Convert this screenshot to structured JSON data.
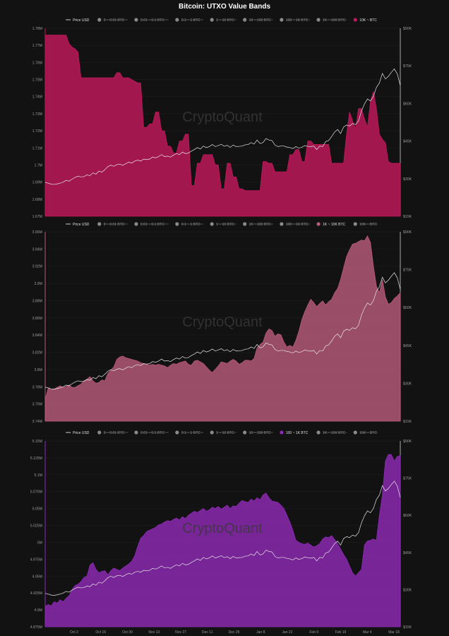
{
  "title": "Bitcoin: UTXO Value Bands",
  "watermark": "CryptoQuant",
  "colors": {
    "background": "#121212",
    "grid": "#1e1e1e",
    "price_line": "#e6e6e6",
    "band_10k": "#c2185b",
    "band_1k_10k": "#b85a7a",
    "band_100_1k": "#8e2ab5",
    "legend_inactive": "#8a8a8a",
    "axis_text": "#9a9a9a",
    "watermark": "#3a3a3a"
  },
  "chart_data": [
    {
      "type": "area",
      "title": "Bitcoin: UTXO Value Bands",
      "legend": [
        {
          "label": "Price USD",
          "active": true,
          "marker": "line"
        },
        {
          "label": "0 ~ 0.01 BTC",
          "active": false
        },
        {
          "label": "0.01 ~ 0.1 BTC",
          "active": false
        },
        {
          "label": "0.1 ~ 1 BTC",
          "active": false
        },
        {
          "label": "1 ~ 10 BTC",
          "active": false
        },
        {
          "label": "10 ~ 100 BTC",
          "active": false
        },
        {
          "label": "100 ~ 1K BTC",
          "active": false
        },
        {
          "label": "1K ~ 10K BTC",
          "active": false
        },
        {
          "label": "10K ~ BTC",
          "active": true
        }
      ],
      "legend_placement": "top",
      "yleft_ticks": [
        "1.67M",
        "1.68M",
        "1.69M",
        "1.7M",
        "1.71M",
        "1.72M",
        "1.73M",
        "1.74M",
        "1.75M",
        "1.76M",
        "1.77M",
        "1.78M"
      ],
      "yleft_range": [
        1670000,
        1780000
      ],
      "yright_ticks": [
        "$15K",
        "$30K",
        "$45K",
        "$60K",
        "$75K",
        "$90K"
      ],
      "yright_range": [
        15000,
        90000
      ],
      "series": [
        {
          "name": "10K ~ BTC",
          "color": "#c2185b",
          "values": [
            1776000,
            1776000,
            1776000,
            1776000,
            1776000,
            1776000,
            1776000,
            1776000,
            1771000,
            1769000,
            1768000,
            1766000,
            1751000,
            1751000,
            1751000,
            1751000,
            1751000,
            1751000,
            1751000,
            1751000,
            1751000,
            1751000,
            1751000,
            1751000,
            1754000,
            1754000,
            1751000,
            1751000,
            1751000,
            1750000,
            1749000,
            1748000,
            1748000,
            1722000,
            1722000,
            1724000,
            1724000,
            1731000,
            1731000,
            1720000,
            1720000,
            1711000,
            1711000,
            1707000,
            1707000,
            1714000,
            1714000,
            1718000,
            1718000,
            1688000,
            1688000,
            1701000,
            1701000,
            1706000,
            1706000,
            1706000,
            1706000,
            1700000,
            1700000,
            1686000,
            1686000,
            1701000,
            1701000,
            1693000,
            1693000,
            1686000,
            1686000,
            1685000,
            1685000,
            1685000,
            1685000,
            1685000,
            1685000,
            1702000,
            1702000,
            1701000,
            1701000,
            1696000,
            1696000,
            1696000,
            1696000,
            1696000,
            1706000,
            1706000,
            1709000,
            1709000,
            1702000,
            1702000,
            1714000,
            1714000,
            1712000,
            1712000,
            1712000,
            1712000,
            1712000,
            1712000,
            1701000,
            1701000,
            1701000,
            1701000,
            1701000,
            1718000,
            1731000,
            1726000,
            1721000,
            1733000,
            1733000,
            1727000,
            1722000,
            1737000,
            1743000,
            1733000,
            1718000,
            1715000,
            1713000,
            1702000,
            1701000,
            1701000,
            1701000,
            1701000
          ]
        },
        {
          "name": "Price USD",
          "color": "#e6e6e6",
          "axis": "right",
          "values": [
            28500,
            28200,
            27800,
            27700,
            27900,
            28200,
            28600,
            29300,
            29000,
            29800,
            30500,
            31000,
            30700,
            30800,
            31500,
            31200,
            32300,
            31800,
            33000,
            32600,
            33600,
            34800,
            35400,
            34900,
            35600,
            35800,
            35300,
            36000,
            36600,
            36200,
            37000,
            37400,
            37000,
            37800,
            37600,
            37800,
            38600,
            38300,
            38800,
            39600,
            38800,
            39000,
            38600,
            39400,
            40000,
            39600,
            40600,
            40000,
            40200,
            41000,
            41600,
            42400,
            41800,
            43000,
            42400,
            42800,
            43600,
            42800,
            43200,
            43700,
            42900,
            43300,
            42500,
            43400,
            42800,
            42900,
            43000,
            43500,
            43600,
            44400,
            43800,
            45400,
            44000,
            44400,
            46000,
            45400,
            45200,
            43400,
            42800,
            43000,
            43000,
            42600,
            42400,
            42000,
            42800,
            42200,
            42500,
            43200,
            42900,
            42700,
            43000,
            41600,
            43000,
            42800,
            44800,
            45200,
            46800,
            48600,
            49600,
            48000,
            50600,
            51400,
            51000,
            52000,
            51600,
            53000,
            57000,
            59800,
            61800,
            61000,
            62800,
            66400,
            68200,
            72000,
            69800,
            70800,
            72400,
            73800,
            71800,
            67200
          ]
        }
      ]
    },
    {
      "type": "area",
      "title": "",
      "legend": [
        {
          "label": "Price USD",
          "active": true,
          "marker": "line"
        },
        {
          "label": "0 ~ 0.01 BTC",
          "active": false
        },
        {
          "label": "0.01 ~ 0.1 BTC",
          "active": false
        },
        {
          "label": "0.1 ~ 1 BTC",
          "active": false
        },
        {
          "label": "1 ~ 10 BTC",
          "active": false
        },
        {
          "label": "10 ~ 100 BTC",
          "active": false
        },
        {
          "label": "100 ~ 1K BTC",
          "active": false
        },
        {
          "label": "1K ~ 10K BTC",
          "active": true
        },
        {
          "label": "10K ~ BTC",
          "active": false
        }
      ],
      "legend_placement": "top",
      "yleft_ticks": [
        "3.74M",
        "3.76M",
        "3.78M",
        "3.8M",
        "3.82M",
        "3.84M",
        "3.86M",
        "3.88M",
        "3.9M",
        "3.92M",
        "3.94M",
        "3.96M"
      ],
      "yleft_range": [
        3740000,
        3970000
      ],
      "yright_ticks": [
        "$15K",
        "$30K",
        "$45K",
        "$60K",
        "$75K",
        "$90K"
      ],
      "yright_range": [
        15000,
        90000
      ],
      "series": [
        {
          "name": "1K ~ 10K BTC",
          "color": "#b85a7a",
          "values": [
            3766000,
            3780000,
            3778000,
            3779000,
            3781000,
            3783000,
            3781000,
            3782000,
            3784000,
            3781000,
            3781000,
            3783000,
            3785000,
            3789000,
            3791000,
            3794000,
            3789000,
            3786000,
            3787000,
            3790000,
            3789000,
            3798000,
            3802000,
            3806000,
            3815000,
            3818000,
            3819000,
            3817000,
            3816000,
            3815000,
            3814000,
            3813000,
            3811000,
            3810000,
            3809000,
            3808000,
            3809000,
            3808000,
            3809000,
            3808000,
            3807000,
            3805000,
            3808000,
            3810000,
            3809000,
            3811000,
            3812000,
            3813000,
            3809000,
            3808000,
            3813000,
            3814000,
            3812000,
            3810000,
            3806000,
            3802000,
            3799000,
            3803000,
            3807000,
            3812000,
            3811000,
            3810000,
            3813000,
            3815000,
            3813000,
            3809000,
            3811000,
            3814000,
            3814000,
            3813000,
            3816000,
            3829000,
            3833000,
            3836000,
            3847000,
            3852000,
            3850000,
            3843000,
            3846000,
            3845000,
            3836000,
            3830000,
            3832000,
            3830000,
            3838000,
            3849000,
            3863000,
            3873000,
            3881000,
            3888000,
            3884000,
            3879000,
            3883000,
            3886000,
            3881000,
            3885000,
            3888000,
            3896000,
            3901000,
            3912000,
            3926000,
            3940000,
            3948000,
            3955000,
            3956000,
            3958000,
            3960000,
            3959000,
            3965000,
            3957000,
            3928000,
            3904000,
            3896000,
            3912000,
            3891000,
            3882000,
            3884000,
            3889000,
            3892000,
            3896000
          ]
        },
        {
          "name": "Price USD",
          "color": "#e6e6e6",
          "axis": "right",
          "values": [
            28500,
            28200,
            27800,
            27700,
            27900,
            28200,
            28600,
            29300,
            29000,
            29800,
            30500,
            31000,
            30700,
            30800,
            31500,
            31200,
            32300,
            31800,
            33000,
            32600,
            33600,
            34800,
            35400,
            34900,
            35600,
            35800,
            35300,
            36000,
            36600,
            36200,
            37000,
            37400,
            37000,
            37800,
            37600,
            37800,
            38600,
            38300,
            38800,
            39600,
            38800,
            39000,
            38600,
            39400,
            40000,
            39600,
            40600,
            40000,
            40200,
            41000,
            41600,
            42400,
            41800,
            43000,
            42400,
            42800,
            43600,
            42800,
            43200,
            43700,
            42900,
            43300,
            42500,
            43400,
            42800,
            42900,
            43000,
            43500,
            43600,
            44400,
            43800,
            45400,
            44000,
            44400,
            46000,
            45400,
            45200,
            43400,
            42800,
            43000,
            43000,
            42600,
            42400,
            42000,
            42800,
            42200,
            42500,
            43200,
            42900,
            42700,
            43000,
            41600,
            43000,
            42800,
            44800,
            45200,
            46800,
            48600,
            49600,
            48000,
            50600,
            51400,
            51000,
            52000,
            51600,
            53000,
            57000,
            59800,
            61800,
            61000,
            62800,
            66400,
            68200,
            72000,
            69800,
            70800,
            72400,
            73800,
            71800,
            67200
          ]
        }
      ]
    },
    {
      "type": "area",
      "title": "",
      "legend": [
        {
          "label": "Price USD",
          "active": true,
          "marker": "line"
        },
        {
          "label": "0 ~ 0.01 BTC",
          "active": false
        },
        {
          "label": "0.01 ~ 0.1 BTC",
          "active": false
        },
        {
          "label": "0.1 ~ 1 BTC",
          "active": false
        },
        {
          "label": "1 ~ 10 BTC",
          "active": false
        },
        {
          "label": "10 ~ 100 BTC",
          "active": false
        },
        {
          "label": "100 ~ 1K BTC",
          "active": true
        },
        {
          "label": "1K ~ 10K BTC",
          "active": false
        },
        {
          "label": "10K ~ BTC",
          "active": false
        }
      ],
      "legend_placement": "top",
      "yleft_ticks": [
        "4.875M",
        "4.9M",
        "4.925M",
        "4.95M",
        "4.975M",
        "5M",
        "5.025M",
        "5.05M",
        "5.075M",
        "5.1M",
        "5.125M",
        "5.15M"
      ],
      "yleft_range": [
        4875000,
        5150000
      ],
      "yright_ticks": [
        "$15K",
        "$30K",
        "$45K",
        "$60K",
        "$75K",
        "$90K"
      ],
      "yright_range": [
        15000,
        90000
      ],
      "x_ticks": [
        "Oct 2",
        "Oct 16",
        "Oct 30",
        "Nov 13",
        "Nov 27",
        "Dec 11",
        "Dec 25",
        "Jan 8",
        "Jan 22",
        "Feb 5",
        "Feb 19",
        "Mar 4",
        "Mar 18"
      ],
      "series": [
        {
          "name": "100 ~ 1K BTC",
          "color": "#8e2ab5",
          "values": [
            4905000,
            4908000,
            4906000,
            4912000,
            4910000,
            4915000,
            4912000,
            4917000,
            4921000,
            4930000,
            4936000,
            4938000,
            4942000,
            4948000,
            4950000,
            4966000,
            4970000,
            4960000,
            4955000,
            4957000,
            4958000,
            4952000,
            4958000,
            4962000,
            4960000,
            4958000,
            4962000,
            4965000,
            4968000,
            4972000,
            4980000,
            4994000,
            5006000,
            5010000,
            5016000,
            5018000,
            5020000,
            5022000,
            5026000,
            5027000,
            5030000,
            5032000,
            5031000,
            5034000,
            5036000,
            5033000,
            5038000,
            5035000,
            5040000,
            5043000,
            5046000,
            5044000,
            5047000,
            5050000,
            5046000,
            5048000,
            5052000,
            5050000,
            5053000,
            5049000,
            5052000,
            5055000,
            5050000,
            5054000,
            5053000,
            5058000,
            5062000,
            5060000,
            5059000,
            5064000,
            5061000,
            5066000,
            5063000,
            5070000,
            5073000,
            5066000,
            5061000,
            5060000,
            5059000,
            5055000,
            5050000,
            5040000,
            5030000,
            5018000,
            5003000,
            5000000,
            4998000,
            4997000,
            4999000,
            4996000,
            4993000,
            4995000,
            4998000,
            5005000,
            5008000,
            5007000,
            5010000,
            5004000,
            4998000,
            4990000,
            4982000,
            4975000,
            4965000,
            4955000,
            4950000,
            4955000,
            4960000,
            4996000,
            5002000,
            5003000,
            5005000,
            5003000,
            5040000,
            5070000,
            5120000,
            5130000,
            5130000,
            5120000,
            5127000,
            5128000
          ]
        },
        {
          "name": "Price USD",
          "color": "#e6e6e6",
          "axis": "right",
          "values": [
            28500,
            28200,
            27800,
            27700,
            27900,
            28200,
            28600,
            29300,
            29000,
            29800,
            30500,
            31000,
            30700,
            30800,
            31500,
            31200,
            32300,
            31800,
            33000,
            32600,
            33600,
            34800,
            35400,
            34900,
            35600,
            35800,
            35300,
            36000,
            36600,
            36200,
            37000,
            37400,
            37000,
            37800,
            37600,
            37800,
            38600,
            38300,
            38800,
            39600,
            38800,
            39000,
            38600,
            39400,
            40000,
            39600,
            40600,
            40000,
            40200,
            41000,
            41600,
            42400,
            41800,
            43000,
            42400,
            42800,
            43600,
            42800,
            43200,
            43700,
            42900,
            43300,
            42500,
            43400,
            42800,
            42900,
            43000,
            43500,
            43600,
            44400,
            43800,
            45400,
            44000,
            44400,
            46000,
            45400,
            45200,
            43400,
            42800,
            43000,
            43000,
            42600,
            42400,
            42000,
            42800,
            42200,
            42500,
            43200,
            42900,
            42700,
            43000,
            41600,
            43000,
            42800,
            44800,
            45200,
            46800,
            48600,
            49600,
            48000,
            50600,
            51400,
            51000,
            52000,
            51600,
            53000,
            57000,
            59800,
            61800,
            61000,
            62800,
            66400,
            68200,
            72000,
            69800,
            70800,
            72400,
            73800,
            71800,
            67200
          ]
        }
      ]
    }
  ]
}
